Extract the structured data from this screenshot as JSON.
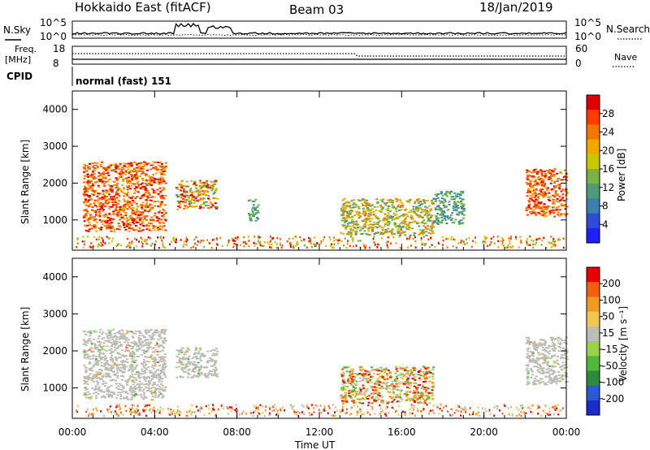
{
  "header": {
    "station": "Hokkaido East (fitACF)",
    "beam": "Beam 03",
    "date": "18/Jan/2019"
  },
  "top_panels": {
    "nsky_label": "N.Sky",
    "nsearch_label": "N.Search",
    "noise_ticks_left": [
      "10^5",
      "10^0"
    ],
    "noise_ticks_right": [
      "10^5",
      "10^0"
    ],
    "freq_label_1": "Freq.",
    "freq_label_2": "[MHz]",
    "freq_ticks": [
      "18",
      "8"
    ],
    "nave_label": "Nave",
    "nave_ticks": [
      "60",
      "0"
    ],
    "cpid_label": "CPID",
    "cpid_value": "normal (fast) 151"
  },
  "chart_data": [
    {
      "type": "heatmap",
      "name": "power",
      "xlabel": "",
      "ylabel": "Slant Range [km]",
      "xlim": [
        0,
        24
      ],
      "ylim": [
        180,
        4500
      ],
      "yticks": [
        "1000",
        "2000",
        "3000",
        "4000"
      ],
      "colorbar_label": "Power [dB]",
      "colorbar_ticks": [
        "4",
        "8",
        "12",
        "16",
        "20",
        "24",
        "28"
      ],
      "colorbar_colors": [
        "#1e1eff",
        "#2f4bd6",
        "#3c7fae",
        "#4f9b79",
        "#7ab244",
        "#c8c800",
        "#f0a800",
        "#f07800",
        "#ff3c00",
        "#e00000"
      ],
      "regions": [
        {
          "t": [
            0.5,
            4.5
          ],
          "range": [
            700,
            2600
          ],
          "level": "high"
        },
        {
          "t": [
            5.0,
            7.0
          ],
          "range": [
            1300,
            2100
          ],
          "level": "mixed"
        },
        {
          "t": [
            8.5,
            9.0
          ],
          "range": [
            1000,
            1600
          ],
          "level": "low"
        },
        {
          "t": [
            13.0,
            17.5
          ],
          "range": [
            600,
            1600
          ],
          "level": "mid"
        },
        {
          "t": [
            17.5,
            19.0
          ],
          "range": [
            900,
            1800
          ],
          "level": "low"
        },
        {
          "t": [
            22.0,
            24.0
          ],
          "range": [
            1100,
            2400
          ],
          "level": "high"
        }
      ]
    },
    {
      "type": "heatmap",
      "name": "velocity",
      "xlabel": "Time UT",
      "ylabel": "Slant Range [km]",
      "xlim": [
        0,
        24
      ],
      "ylim": [
        180,
        4500
      ],
      "xticks": [
        "00:00",
        "04:00",
        "08:00",
        "12:00",
        "16:00",
        "20:00",
        "00:00"
      ],
      "yticks": [
        "1000",
        "2000",
        "3000",
        "4000"
      ],
      "colorbar_label": "Velocity [m s⁻¹]",
      "colorbar_ticks": [
        "200",
        "100",
        "50",
        "15",
        "-15",
        "-50",
        "-100",
        "-200"
      ],
      "colorbar_colors": [
        "#1a2cc8",
        "#2a5ad2",
        "#2e8a3c",
        "#52b83a",
        "#9ad24a",
        "#bdbdb8",
        "#f0c850",
        "#f09a20",
        "#f06010",
        "#e80000"
      ],
      "regions": [
        {
          "t": [
            0.5,
            4.5
          ],
          "range": [
            700,
            2600
          ],
          "level": "ground"
        },
        {
          "t": [
            5.0,
            7.0
          ],
          "range": [
            1300,
            2100
          ],
          "level": "ground"
        },
        {
          "t": [
            13.0,
            17.5
          ],
          "range": [
            600,
            1600
          ],
          "level": "mixed"
        },
        {
          "t": [
            22.0,
            24.0
          ],
          "range": [
            1100,
            2400
          ],
          "level": "ground"
        }
      ]
    }
  ]
}
